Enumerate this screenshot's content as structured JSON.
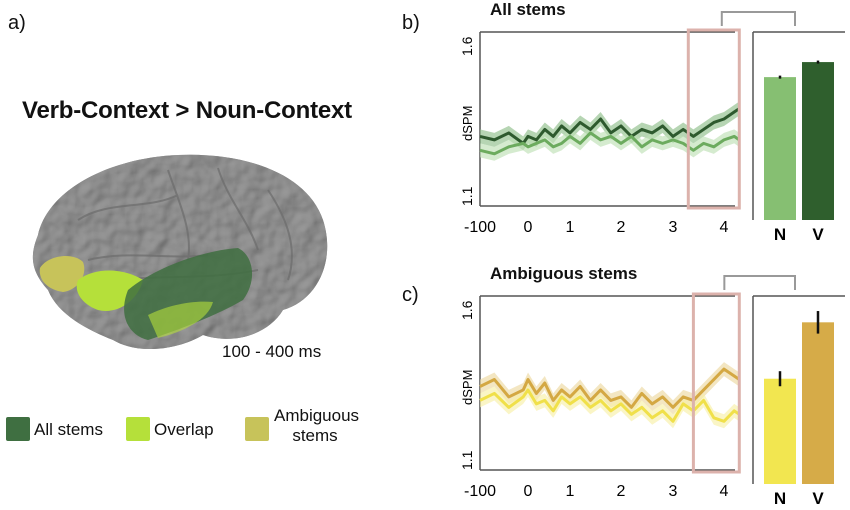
{
  "panel_a": {
    "letter": "a)",
    "title": "Verb-Context > Noun-Context",
    "time_window": "100 - 400 ms",
    "brain_icon": "brain-lateral-left-hemisphere",
    "legend": [
      {
        "label": "All stems",
        "color": "#3f6f41"
      },
      {
        "label": "Overlap",
        "color": "#b5e03a"
      },
      {
        "label": "Ambiguous stems",
        "color": "#c7c35a"
      }
    ]
  },
  "chart_data": [
    {
      "type": "line",
      "panel": "b)",
      "title": "All stems",
      "ylabel": "dSPM",
      "ytick_labels": [
        "1.6",
        "1.1"
      ],
      "x_ticks": [
        -100,
        0,
        1,
        2,
        3,
        4
      ],
      "highlight_window": [
        3.3,
        4.3
      ],
      "series": [
        {
          "color": "#2e5a2e",
          "band": "#8fbf8a",
          "x": [
            -100,
            -70,
            -40,
            -10,
            0,
            0.2,
            0.4,
            0.6,
            0.8,
            1.0,
            1.2,
            1.4,
            1.6,
            1.8,
            2.0,
            2.2,
            2.4,
            2.6,
            2.8,
            3.0,
            3.2,
            3.4,
            3.6,
            3.8,
            4.0,
            4.2,
            4.3
          ],
          "y": [
            1.3,
            1.29,
            1.31,
            1.28,
            1.3,
            1.29,
            1.32,
            1.3,
            1.33,
            1.31,
            1.34,
            1.32,
            1.35,
            1.31,
            1.33,
            1.3,
            1.32,
            1.31,
            1.33,
            1.3,
            1.32,
            1.3,
            1.32,
            1.34,
            1.35,
            1.37,
            1.38
          ]
        },
        {
          "color": "#6cab5e",
          "band": "#bfe0b5",
          "x": [
            -100,
            -70,
            -40,
            -10,
            0,
            0.2,
            0.4,
            0.6,
            0.8,
            1.0,
            1.2,
            1.4,
            1.6,
            1.8,
            2.0,
            2.2,
            2.4,
            2.6,
            2.8,
            3.0,
            3.2,
            3.4,
            3.6,
            3.8,
            4.0,
            4.2,
            4.3
          ],
          "y": [
            1.26,
            1.25,
            1.27,
            1.28,
            1.27,
            1.28,
            1.29,
            1.27,
            1.28,
            1.3,
            1.28,
            1.31,
            1.29,
            1.3,
            1.28,
            1.3,
            1.27,
            1.29,
            1.28,
            1.29,
            1.28,
            1.26,
            1.28,
            1.27,
            1.29,
            1.3,
            1.29
          ]
        }
      ],
      "bar": {
        "categories": [
          "N",
          "V"
        ],
        "values": [
          1.48,
          1.52
        ],
        "errors": [
          0.004,
          0.004
        ],
        "colors": [
          "#86bf72",
          "#2f5f2d"
        ],
        "ylim": [
          1.1,
          1.6
        ]
      }
    },
    {
      "type": "line",
      "panel": "c)",
      "title": "Ambiguous stems",
      "ylabel": "dSPM",
      "ytick_labels": [
        "1.6",
        "1.1"
      ],
      "x_ticks": [
        -100,
        0,
        1,
        2,
        3,
        4
      ],
      "highlight_window": [
        3.4,
        4.3
      ],
      "series": [
        {
          "color": "#d4a843",
          "band": "#ecd8a2",
          "x": [
            -100,
            -70,
            -40,
            -10,
            0,
            0.2,
            0.4,
            0.6,
            0.8,
            1.0,
            1.2,
            1.4,
            1.6,
            1.8,
            2.0,
            2.2,
            2.4,
            2.6,
            2.8,
            3.0,
            3.2,
            3.4,
            3.6,
            3.8,
            4.0,
            4.2,
            4.3
          ],
          "y": [
            1.34,
            1.36,
            1.31,
            1.33,
            1.36,
            1.32,
            1.35,
            1.3,
            1.33,
            1.31,
            1.34,
            1.3,
            1.33,
            1.3,
            1.31,
            1.28,
            1.32,
            1.29,
            1.31,
            1.28,
            1.31,
            1.3,
            1.33,
            1.36,
            1.39,
            1.37,
            1.36
          ]
        },
        {
          "color": "#f0e04a",
          "band": "#f7f0a8",
          "x": [
            -100,
            -70,
            -40,
            -10,
            0,
            0.2,
            0.4,
            0.6,
            0.8,
            1.0,
            1.2,
            1.4,
            1.6,
            1.8,
            2.0,
            2.2,
            2.4,
            2.6,
            2.8,
            3.0,
            3.2,
            3.4,
            3.6,
            3.8,
            4.0,
            4.2,
            4.3
          ],
          "y": [
            1.3,
            1.32,
            1.28,
            1.31,
            1.33,
            1.29,
            1.3,
            1.27,
            1.31,
            1.29,
            1.31,
            1.28,
            1.3,
            1.27,
            1.29,
            1.26,
            1.28,
            1.25,
            1.27,
            1.24,
            1.29,
            1.27,
            1.3,
            1.25,
            1.24,
            1.27,
            1.26
          ]
        }
      ],
      "bar": {
        "categories": [
          "N",
          "V"
        ],
        "values": [
          1.38,
          1.53
        ],
        "errors": [
          0.02,
          0.03
        ],
        "colors": [
          "#f2e650",
          "#d6ab48"
        ],
        "ylim": [
          1.1,
          1.6
        ]
      }
    }
  ]
}
